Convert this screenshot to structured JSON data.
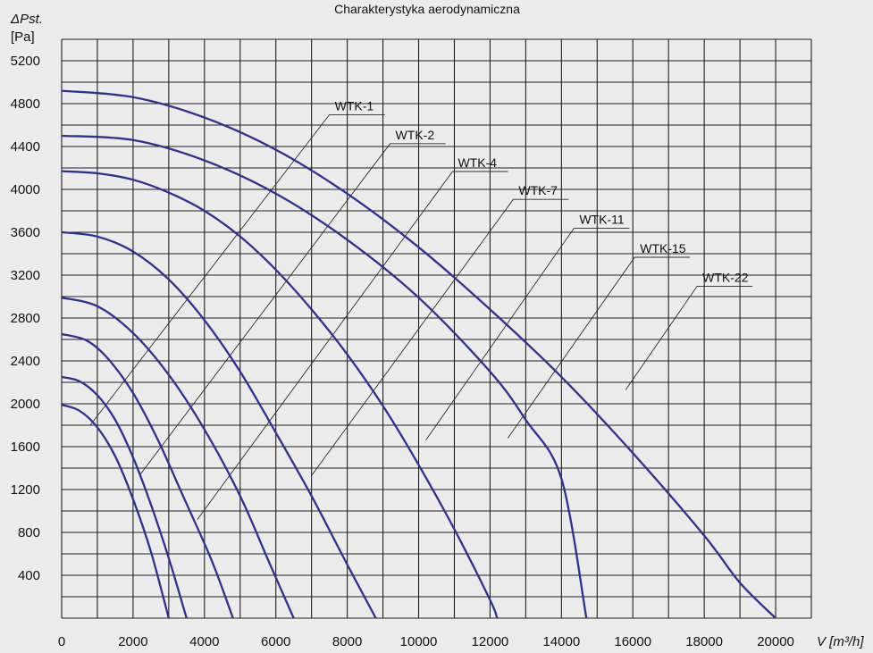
{
  "chart_data": {
    "type": "line",
    "title": "Charakterystyka aerodynamiczna",
    "ylabel_line1": "ΔPst.",
    "ylabel_line2": "[Pa]",
    "xlabel": "V [m³/h]",
    "xlim": [
      0,
      21000
    ],
    "ylim": [
      0,
      5400
    ],
    "grid": true,
    "x_grid_step": 1000,
    "y_grid_step": 200,
    "x_ticks": [
      0,
      2000,
      4000,
      6000,
      8000,
      10000,
      12000,
      14000,
      16000,
      18000,
      20000
    ],
    "y_ticks": [
      400,
      800,
      1200,
      1600,
      2000,
      2400,
      2800,
      3200,
      3600,
      4000,
      4400,
      4800,
      5200
    ],
    "series": [
      {
        "name": "WTK-1",
        "points": [
          [
            0,
            1990
          ],
          [
            500,
            1935
          ],
          [
            1000,
            1780
          ],
          [
            1500,
            1510
          ],
          [
            2000,
            1110
          ],
          [
            2500,
            620
          ],
          [
            3000,
            0
          ]
        ],
        "label_at": [
          7500,
          4730
        ],
        "leader_to": [
          800,
          1800
        ]
      },
      {
        "name": "WTK-2",
        "points": [
          [
            0,
            2250
          ],
          [
            500,
            2210
          ],
          [
            1000,
            2080
          ],
          [
            1500,
            1850
          ],
          [
            2000,
            1500
          ],
          [
            2500,
            1060
          ],
          [
            3000,
            560
          ],
          [
            3500,
            0
          ]
        ],
        "label_at": [
          9200,
          4460
        ],
        "leader_to": [
          2200,
          1340
        ]
      },
      {
        "name": "WTK-4",
        "points": [
          [
            0,
            2650
          ],
          [
            700,
            2590
          ],
          [
            1300,
            2420
          ],
          [
            2000,
            2100
          ],
          [
            2700,
            1660
          ],
          [
            3400,
            1140
          ],
          [
            4200,
            540
          ],
          [
            4800,
            0
          ]
        ],
        "label_at": [
          10950,
          4200
        ],
        "leader_to": [
          3800,
          920
        ]
      },
      {
        "name": "WTK-7",
        "points": [
          [
            0,
            2990
          ],
          [
            1000,
            2910
          ],
          [
            2000,
            2660
          ],
          [
            3000,
            2270
          ],
          [
            4000,
            1760
          ],
          [
            5000,
            1140
          ],
          [
            5800,
            530
          ],
          [
            6500,
            0
          ]
        ],
        "label_at": [
          12650,
          3940
        ],
        "leader_to": [
          7000,
          1330
        ]
      },
      {
        "name": "WTK-11",
        "points": [
          [
            0,
            3600
          ],
          [
            1000,
            3560
          ],
          [
            2000,
            3420
          ],
          [
            3000,
            3160
          ],
          [
            4000,
            2780
          ],
          [
            5000,
            2300
          ],
          [
            6000,
            1730
          ],
          [
            7000,
            1140
          ],
          [
            8000,
            500
          ],
          [
            8800,
            0
          ]
        ],
        "label_at": [
          14350,
          3670
        ],
        "leader_to": [
          10200,
          1660
        ]
      },
      {
        "name": "WTK-15",
        "points": [
          [
            0,
            4170
          ],
          [
            1000,
            4150
          ],
          [
            2000,
            4090
          ],
          [
            3000,
            3970
          ],
          [
            4000,
            3800
          ],
          [
            5000,
            3560
          ],
          [
            6000,
            3250
          ],
          [
            7000,
            2880
          ],
          [
            8000,
            2460
          ],
          [
            9000,
            1980
          ],
          [
            10000,
            1430
          ],
          [
            11000,
            830
          ],
          [
            12000,
            170
          ],
          [
            12200,
            0
          ]
        ],
        "label_at": [
          16050,
          3400
        ],
        "leader_to": [
          12500,
          1680
        ]
      },
      {
        "name": "WTK-22",
        "points": [
          [
            0,
            4920
          ],
          [
            2000,
            4860
          ],
          [
            4000,
            4670
          ],
          [
            6000,
            4370
          ],
          [
            8000,
            3960
          ],
          [
            10000,
            3460
          ],
          [
            12000,
            2880
          ],
          [
            14000,
            2250
          ],
          [
            16000,
            1540
          ],
          [
            18000,
            770
          ],
          [
            19000,
            330
          ],
          [
            20000,
            0
          ]
        ],
        "label_at": [
          17800,
          3130
        ],
        "leader_to": [
          15800,
          2130
        ]
      },
      {
        "name": "",
        "points": [
          [
            0,
            4500
          ],
          [
            2000,
            4460
          ],
          [
            4000,
            4270
          ],
          [
            6000,
            3960
          ],
          [
            8000,
            3530
          ],
          [
            10000,
            2990
          ],
          [
            12000,
            2300
          ],
          [
            13000,
            1850
          ],
          [
            14000,
            1300
          ],
          [
            14700,
            0
          ]
        ],
        "label_at": null,
        "leader_to": null
      }
    ]
  }
}
